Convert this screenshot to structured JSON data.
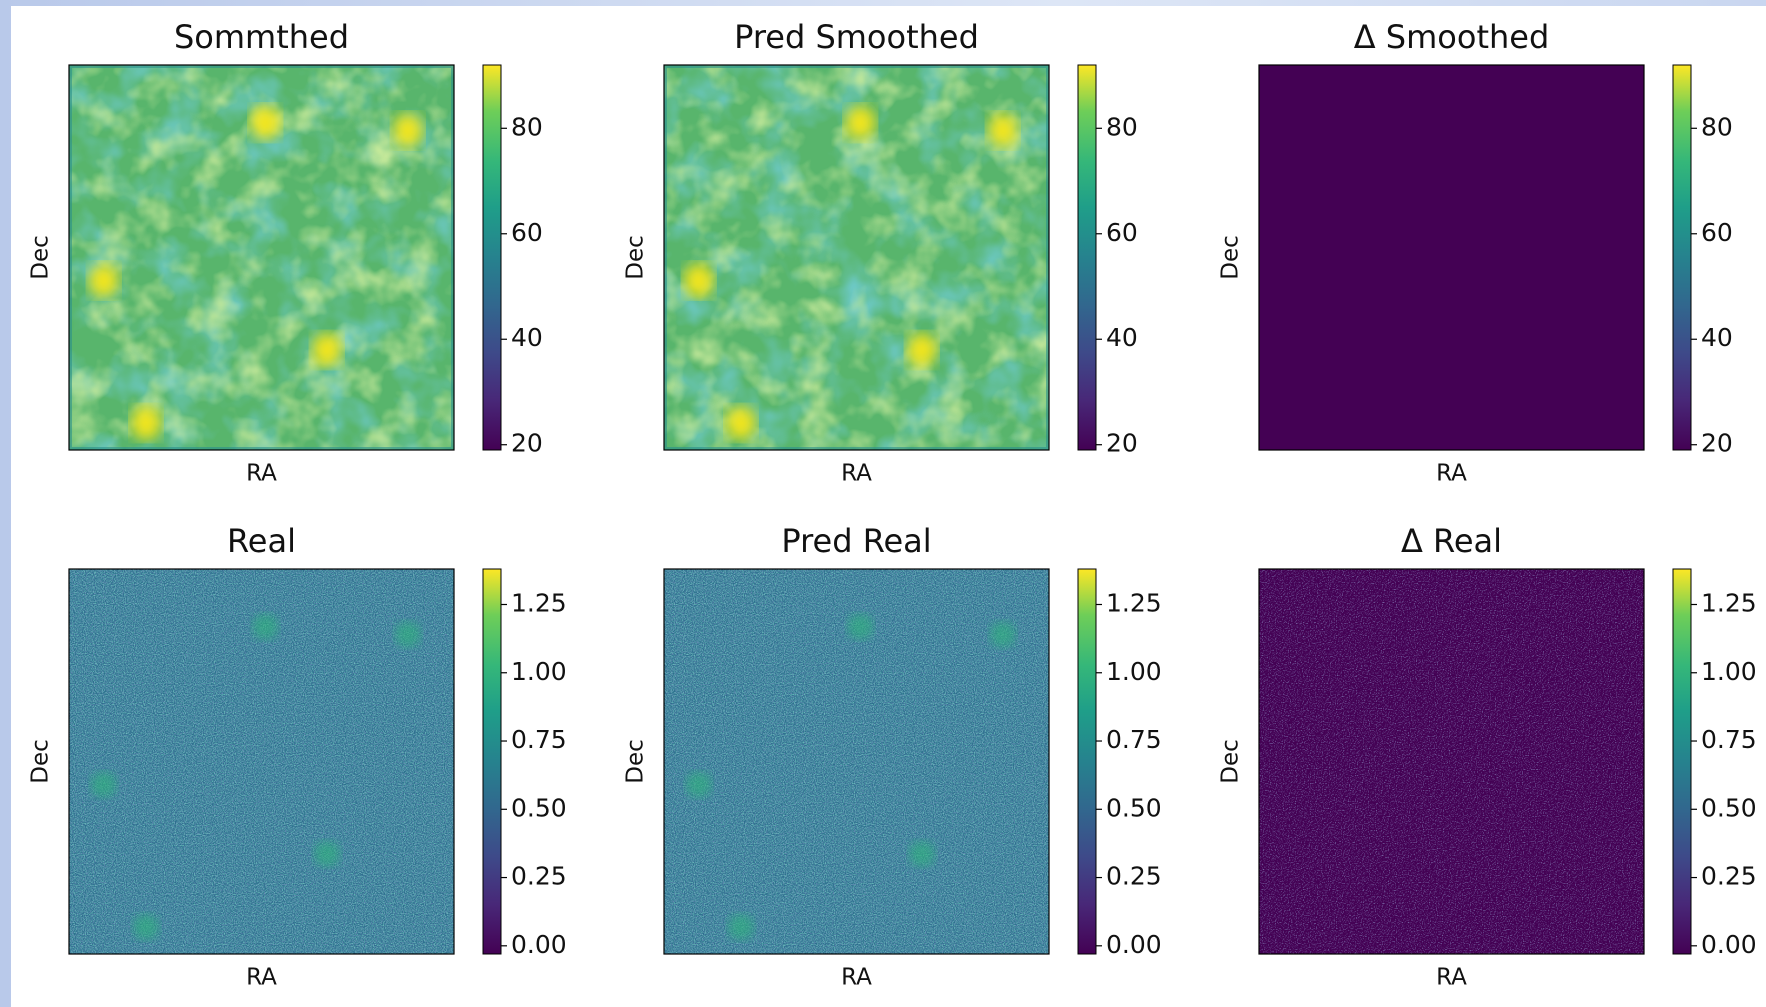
{
  "chart_data": [
    {
      "type": "image",
      "title": "Sommthed",
      "xlabel": "RA",
      "ylabel": "Dec",
      "colormap": "viridis",
      "clim": [
        19,
        92
      ],
      "cticks": [
        20,
        40,
        60,
        80
      ]
    },
    {
      "type": "image",
      "title": "Pred Smoothed",
      "xlabel": "RA",
      "ylabel": "Dec",
      "colormap": "viridis",
      "clim": [
        19,
        92
      ],
      "cticks": [
        20,
        40,
        60,
        80
      ]
    },
    {
      "type": "image",
      "title": "Δ Smoothed",
      "xlabel": "RA",
      "ylabel": "Dec",
      "colormap": "viridis",
      "clim": [
        19,
        92
      ],
      "cticks": [
        20,
        40,
        60,
        80
      ]
    },
    {
      "type": "image",
      "title": "Real",
      "xlabel": "RA",
      "ylabel": "Dec",
      "colormap": "viridis",
      "clim": [
        -0.03,
        1.38
      ],
      "cticks": [
        {
          "value": 0,
          "label": "0.00"
        },
        0.25,
        {
          "value": 0.5,
          "label": "0.50"
        },
        0.75,
        {
          "value": 1,
          "label": "1.00"
        },
        1.25
      ]
    },
    {
      "type": "image",
      "title": "Pred Real",
      "xlabel": "RA",
      "ylabel": "Dec",
      "colormap": "viridis",
      "clim": [
        -0.03,
        1.38
      ],
      "cticks": [
        {
          "value": 0,
          "label": "0.00"
        },
        0.25,
        {
          "value": 0.5,
          "label": "0.50"
        },
        0.75,
        {
          "value": 1,
          "label": "1.00"
        },
        1.25
      ]
    },
    {
      "type": "image",
      "title": "Δ Real",
      "xlabel": "RA",
      "ylabel": "Dec",
      "colormap": "viridis",
      "clim": [
        -0.03,
        1.38
      ],
      "cticks": [
        {
          "value": 0,
          "label": "0.00"
        },
        0.25,
        {
          "value": 0.5,
          "label": "0.50"
        },
        0.75,
        {
          "value": 1,
          "label": "1.00"
        },
        1.25
      ]
    }
  ]
}
